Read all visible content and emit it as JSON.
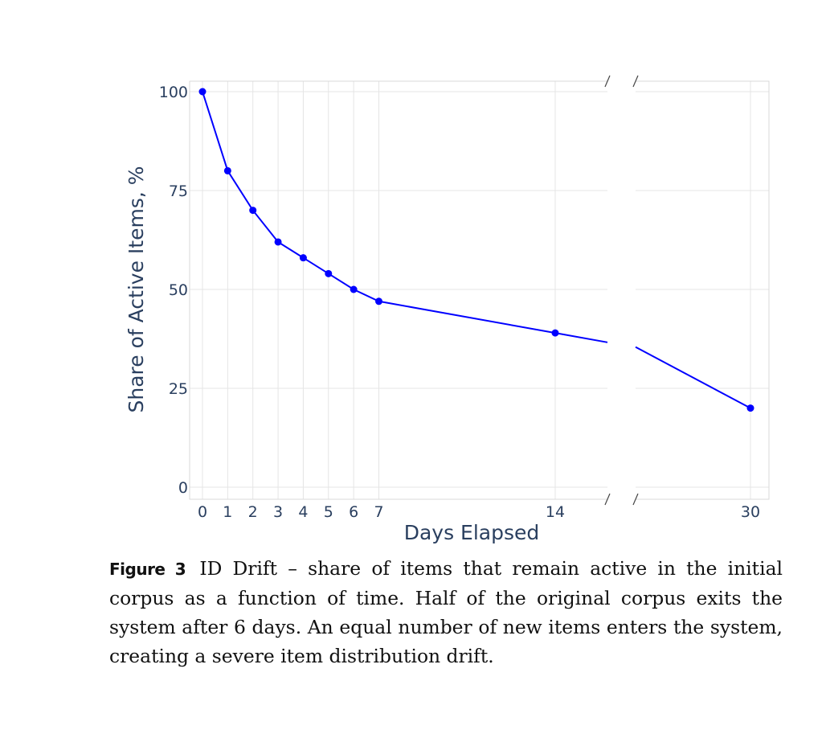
{
  "chart_data": {
    "type": "line",
    "xlabel": "Days Elapsed",
    "ylabel": "Share of Active Items, %",
    "x": [
      0,
      1,
      2,
      3,
      4,
      5,
      6,
      7,
      14,
      30
    ],
    "y": [
      100,
      80,
      70,
      62,
      58,
      54,
      50,
      47,
      39,
      20
    ],
    "x_ticks": [
      0,
      1,
      2,
      3,
      4,
      5,
      6,
      7,
      14,
      30
    ],
    "y_ticks": [
      0,
      25,
      50,
      75,
      100
    ],
    "ylim": [
      0,
      100
    ],
    "broken_axis": true,
    "x_segments": [
      [
        0,
        16
      ],
      [
        17,
        30
      ]
    ],
    "grid": true,
    "color": "#0000ff"
  },
  "caption": {
    "label": "Figure 3",
    "text": "ID Drift – share of items that remain active in the initial corpus as a function of time. Half of the original corpus exits the system after 6 days. An equal number of new items enters the system, creating a severe item distribution drift."
  }
}
